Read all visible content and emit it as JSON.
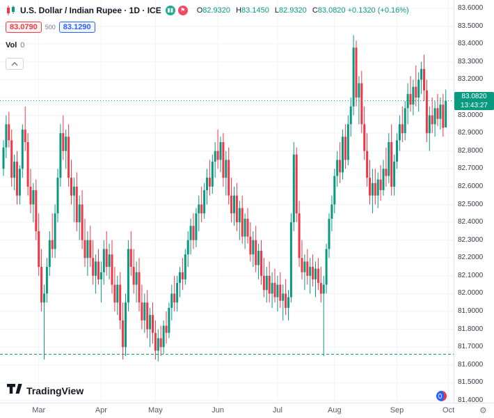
{
  "header": {
    "title": "U.S. Dollar / Indian Rupee · 1D · ICE",
    "ohlc": {
      "o_label": "O",
      "o_value": "82.9320",
      "h_label": "H",
      "h_value": "83.1450",
      "l_label": "L",
      "l_value": "82.9320",
      "c_label": "C",
      "c_value": "83.0820",
      "change": "+0.1320 (+0.16%)"
    },
    "bid": "83.0790",
    "spread": "500",
    "ask": "83.1290",
    "vol_label": "Vol",
    "vol_value": "0"
  },
  "price_badge": {
    "price": "83.0820",
    "countdown": "13:43:27"
  },
  "footer": {
    "logo_text": "TradingView"
  },
  "colors": {
    "up": "#089981",
    "down": "#f23645",
    "grid": "#f0f3fa",
    "bid": "#f23645",
    "ask": "#2962ff",
    "axis_text": "#363a45",
    "badge_bg": "#089981"
  },
  "chart_data": {
    "type": "candlestick",
    "title": "U.S. Dollar / Indian Rupee",
    "interval": "1D",
    "exchange": "ICE",
    "y_min": 81.4,
    "y_max": 83.6,
    "y_step": 0.1,
    "current_price": 83.082,
    "dashed_level": 81.66,
    "time_ticks": [
      {
        "label": "Mar",
        "i": 13
      },
      {
        "label": "Apr",
        "i": 36
      },
      {
        "label": "May",
        "i": 56
      },
      {
        "label": "Jun",
        "i": 79
      },
      {
        "label": "Jul",
        "i": 101
      },
      {
        "label": "Aug",
        "i": 122
      },
      {
        "label": "Sep",
        "i": 145
      },
      {
        "label": "Oct",
        "i": 164
      }
    ],
    "candles": [
      [
        82.7,
        82.86,
        82.66,
        82.82
      ],
      [
        82.82,
        83.0,
        82.76,
        82.95
      ],
      [
        82.95,
        83.02,
        82.82,
        82.86
      ],
      [
        82.86,
        82.92,
        82.6,
        82.65
      ],
      [
        82.65,
        82.78,
        82.58,
        82.74
      ],
      [
        82.74,
        82.8,
        82.5,
        82.55
      ],
      [
        82.55,
        82.72,
        82.5,
        82.7
      ],
      [
        82.7,
        82.95,
        82.65,
        82.92
      ],
      [
        82.92,
        83.05,
        82.8,
        82.85
      ],
      [
        82.85,
        82.9,
        82.55,
        82.6
      ],
      [
        82.6,
        82.7,
        82.45,
        82.5
      ],
      [
        82.5,
        82.62,
        82.4,
        82.58
      ],
      [
        82.58,
        82.64,
        82.3,
        82.35
      ],
      [
        82.35,
        82.45,
        82.1,
        82.15
      ],
      [
        82.15,
        82.25,
        81.9,
        81.95
      ],
      [
        81.95,
        82.05,
        81.63,
        82.0
      ],
      [
        82.0,
        82.2,
        81.95,
        82.15
      ],
      [
        82.15,
        82.35,
        82.1,
        82.3
      ],
      [
        82.3,
        82.45,
        82.2,
        82.25
      ],
      [
        82.25,
        82.5,
        82.2,
        82.45
      ],
      [
        82.45,
        82.7,
        82.4,
        82.65
      ],
      [
        82.65,
        82.95,
        82.6,
        82.9
      ],
      [
        82.9,
        83.0,
        82.75,
        82.8
      ],
      [
        82.8,
        82.92,
        82.7,
        82.88
      ],
      [
        82.88,
        82.95,
        82.6,
        82.65
      ],
      [
        82.65,
        82.75,
        82.5,
        82.55
      ],
      [
        82.55,
        82.65,
        82.4,
        82.6
      ],
      [
        82.6,
        82.68,
        82.35,
        82.4
      ],
      [
        82.4,
        82.55,
        82.3,
        82.5
      ],
      [
        82.5,
        82.58,
        82.25,
        82.3
      ],
      [
        82.3,
        82.42,
        82.15,
        82.2
      ],
      [
        82.2,
        82.35,
        82.1,
        82.3
      ],
      [
        82.3,
        82.38,
        82.15,
        82.2
      ],
      [
        82.2,
        82.3,
        82.05,
        82.1
      ],
      [
        82.1,
        82.22,
        82.0,
        82.18
      ],
      [
        82.18,
        82.25,
        82.05,
        82.08
      ],
      [
        82.08,
        82.18,
        81.95,
        82.12
      ],
      [
        82.12,
        82.3,
        82.05,
        82.25
      ],
      [
        82.25,
        82.35,
        82.1,
        82.15
      ],
      [
        82.15,
        82.28,
        82.08,
        82.22
      ],
      [
        82.22,
        82.3,
        82.0,
        82.05
      ],
      [
        82.05,
        82.15,
        81.9,
        81.95
      ],
      [
        81.95,
        82.1,
        81.88,
        82.05
      ],
      [
        82.05,
        82.12,
        81.8,
        81.85
      ],
      [
        81.85,
        81.95,
        81.63,
        81.7
      ],
      [
        81.7,
        82.0,
        81.65,
        81.95
      ],
      [
        81.95,
        82.3,
        81.9,
        82.25
      ],
      [
        82.25,
        82.35,
        82.1,
        82.15
      ],
      [
        82.15,
        82.25,
        82.0,
        82.05
      ],
      [
        82.05,
        82.18,
        81.95,
        82.12
      ],
      [
        82.12,
        82.2,
        81.9,
        81.95
      ],
      [
        81.95,
        82.05,
        81.8,
        81.85
      ],
      [
        81.85,
        82.0,
        81.78,
        81.95
      ],
      [
        81.95,
        82.02,
        81.75,
        81.8
      ],
      [
        81.8,
        81.92,
        81.7,
        81.88
      ],
      [
        81.88,
        81.95,
        81.72,
        81.78
      ],
      [
        81.78,
        81.85,
        81.63,
        81.68
      ],
      [
        81.68,
        81.8,
        81.62,
        81.75
      ],
      [
        81.75,
        81.82,
        81.65,
        81.7
      ],
      [
        81.7,
        81.85,
        81.66,
        81.82
      ],
      [
        81.82,
        81.9,
        81.72,
        81.78
      ],
      [
        81.78,
        81.95,
        81.75,
        81.92
      ],
      [
        81.92,
        82.05,
        81.85,
        82.0
      ],
      [
        82.0,
        82.1,
        81.9,
        81.95
      ],
      [
        81.95,
        82.1,
        81.9,
        82.06
      ],
      [
        82.06,
        82.15,
        81.98,
        82.12
      ],
      [
        82.12,
        82.2,
        82.02,
        82.08
      ],
      [
        82.08,
        82.25,
        82.05,
        82.22
      ],
      [
        82.22,
        82.35,
        82.15,
        82.3
      ],
      [
        82.3,
        82.42,
        82.22,
        82.38
      ],
      [
        82.38,
        82.45,
        82.25,
        82.3
      ],
      [
        82.3,
        82.48,
        82.26,
        82.45
      ],
      [
        82.45,
        82.55,
        82.35,
        82.5
      ],
      [
        82.5,
        82.6,
        82.4,
        82.45
      ],
      [
        82.45,
        82.62,
        82.42,
        82.58
      ],
      [
        82.58,
        82.7,
        82.5,
        82.65
      ],
      [
        82.65,
        82.75,
        82.55,
        82.6
      ],
      [
        82.6,
        82.78,
        82.56,
        82.74
      ],
      [
        82.74,
        82.85,
        82.65,
        82.8
      ],
      [
        82.8,
        82.92,
        82.7,
        82.75
      ],
      [
        82.75,
        82.88,
        82.68,
        82.85
      ],
      [
        82.85,
        82.9,
        82.6,
        82.65
      ],
      [
        82.65,
        82.8,
        82.55,
        82.75
      ],
      [
        82.75,
        82.82,
        82.5,
        82.55
      ],
      [
        82.55,
        82.65,
        82.4,
        82.45
      ],
      [
        82.45,
        82.6,
        82.38,
        82.55
      ],
      [
        82.55,
        82.62,
        82.35,
        82.4
      ],
      [
        82.4,
        82.52,
        82.3,
        82.48
      ],
      [
        82.48,
        82.55,
        82.28,
        82.32
      ],
      [
        82.32,
        82.45,
        82.25,
        82.42
      ],
      [
        82.42,
        82.48,
        82.28,
        82.32
      ],
      [
        82.32,
        82.4,
        82.18,
        82.22
      ],
      [
        82.22,
        82.35,
        82.15,
        82.3
      ],
      [
        82.3,
        82.38,
        82.12,
        82.16
      ],
      [
        82.16,
        82.28,
        82.08,
        82.24
      ],
      [
        82.24,
        82.3,
        82.05,
        82.1
      ],
      [
        82.1,
        82.2,
        81.98,
        82.02
      ],
      [
        82.02,
        82.15,
        81.95,
        82.1
      ],
      [
        82.1,
        82.18,
        81.95,
        82.0
      ],
      [
        82.0,
        82.12,
        81.92,
        82.06
      ],
      [
        82.06,
        82.14,
        81.95,
        81.98
      ],
      [
        81.98,
        82.1,
        81.9,
        82.05
      ],
      [
        82.05,
        82.12,
        81.92,
        81.96
      ],
      [
        81.96,
        82.05,
        81.85,
        82.0
      ],
      [
        82.0,
        82.08,
        81.88,
        81.92
      ],
      [
        81.92,
        82.02,
        81.85,
        81.98
      ],
      [
        81.98,
        82.45,
        81.95,
        82.4
      ],
      [
        82.4,
        82.85,
        82.35,
        82.78
      ],
      [
        82.78,
        82.82,
        82.4,
        82.45
      ],
      [
        82.45,
        82.52,
        82.15,
        82.2
      ],
      [
        82.2,
        82.3,
        82.08,
        82.12
      ],
      [
        82.12,
        82.22,
        82.02,
        82.18
      ],
      [
        82.18,
        82.25,
        82.05,
        82.1
      ],
      [
        82.1,
        82.2,
        82.0,
        82.15
      ],
      [
        82.15,
        82.22,
        82.04,
        82.08
      ],
      [
        82.08,
        82.18,
        81.98,
        82.14
      ],
      [
        82.14,
        82.2,
        82.02,
        82.06
      ],
      [
        82.06,
        82.15,
        81.95,
        82.0
      ],
      [
        82.0,
        82.1,
        81.65,
        82.05
      ],
      [
        82.05,
        82.28,
        82.0,
        82.25
      ],
      [
        82.25,
        82.45,
        82.2,
        82.42
      ],
      [
        82.42,
        82.55,
        82.35,
        82.5
      ],
      [
        82.5,
        82.7,
        82.45,
        82.66
      ],
      [
        82.66,
        82.8,
        82.6,
        82.75
      ],
      [
        82.75,
        82.85,
        82.62,
        82.68
      ],
      [
        82.68,
        82.92,
        82.64,
        82.88
      ],
      [
        82.88,
        82.95,
        82.7,
        82.75
      ],
      [
        82.75,
        83.0,
        82.72,
        82.95
      ],
      [
        82.95,
        83.1,
        82.88,
        83.05
      ],
      [
        83.05,
        83.45,
        83.0,
        83.38
      ],
      [
        83.38,
        83.42,
        83.05,
        83.1
      ],
      [
        83.1,
        83.22,
        82.95,
        83.18
      ],
      [
        83.18,
        83.25,
        82.9,
        82.95
      ],
      [
        82.95,
        83.05,
        82.75,
        82.8
      ],
      [
        82.8,
        82.9,
        82.6,
        82.65
      ],
      [
        82.65,
        82.75,
        82.5,
        82.55
      ],
      [
        82.55,
        82.7,
        82.45,
        82.62
      ],
      [
        82.62,
        82.7,
        82.5,
        82.55
      ],
      [
        82.55,
        82.68,
        82.48,
        82.64
      ],
      [
        82.64,
        82.72,
        82.52,
        82.58
      ],
      [
        82.58,
        82.75,
        82.55,
        82.7
      ],
      [
        82.7,
        82.82,
        82.6,
        82.66
      ],
      [
        82.66,
        82.9,
        82.62,
        82.85
      ],
      [
        82.85,
        82.95,
        82.55,
        82.6
      ],
      [
        82.6,
        82.78,
        82.55,
        82.74
      ],
      [
        82.74,
        82.9,
        82.7,
        82.86
      ],
      [
        82.86,
        83.0,
        82.8,
        82.95
      ],
      [
        82.95,
        83.05,
        82.85,
        82.9
      ],
      [
        82.9,
        83.08,
        82.86,
        83.04
      ],
      [
        83.04,
        83.18,
        82.95,
        83.12
      ],
      [
        83.12,
        83.22,
        83.02,
        83.06
      ],
      [
        83.06,
        83.2,
        83.0,
        83.16
      ],
      [
        83.16,
        83.28,
        83.05,
        83.1
      ],
      [
        83.1,
        83.24,
        83.02,
        83.2
      ],
      [
        83.2,
        83.3,
        83.12,
        83.26
      ],
      [
        83.26,
        83.34,
        83.08,
        83.14
      ],
      [
        83.14,
        83.2,
        82.85,
        82.9
      ],
      [
        82.9,
        83.05,
        82.8,
        83.0
      ],
      [
        83.0,
        83.1,
        82.9,
        82.95
      ],
      [
        82.95,
        83.08,
        82.88,
        83.04
      ],
      [
        83.04,
        83.12,
        82.94,
        82.98
      ],
      [
        82.98,
        83.1,
        82.92,
        83.06
      ],
      [
        83.06,
        83.12,
        82.88,
        82.93
      ],
      [
        82.932,
        83.145,
        82.932,
        83.082
      ]
    ]
  }
}
